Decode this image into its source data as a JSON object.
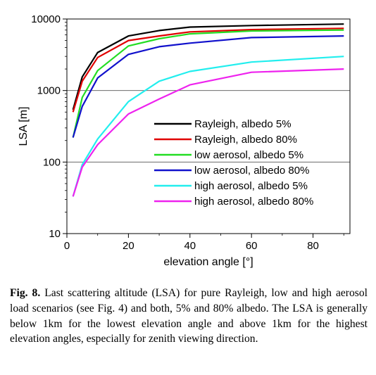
{
  "chart_data": {
    "type": "line",
    "xlabel": "elevation angle [°]",
    "ylabel": "LSA [m]",
    "xlim": [
      0,
      92
    ],
    "ylim": [
      10,
      10000
    ],
    "y_scale": "log",
    "x_ticks": [
      0,
      20,
      40,
      60,
      80
    ],
    "y_ticks": [
      10,
      100,
      1000,
      10000
    ],
    "grid": "horizontal at decades",
    "legend_position": "center-right",
    "x": [
      2,
      5,
      10,
      20,
      30,
      40,
      60,
      90
    ],
    "series": [
      {
        "name": "Rayleigh, albedo 5%",
        "color": "#000000",
        "values": [
          540,
          1550,
          3400,
          5800,
          6900,
          7700,
          8100,
          8500
        ]
      },
      {
        "name": "Rayleigh, albedo 80%",
        "color": "#e00000",
        "values": [
          500,
          1350,
          2900,
          5000,
          5800,
          6600,
          7100,
          7400
        ]
      },
      {
        "name": "low aerosol, albedo 5%",
        "color": "#22dd22",
        "values": [
          220,
          800,
          1900,
          4200,
          5300,
          6200,
          6800,
          7000
        ]
      },
      {
        "name": "low aerosol, albedo 80%",
        "color": "#1111cc",
        "values": [
          220,
          600,
          1500,
          3200,
          4100,
          4600,
          5500,
          5800
        ]
      },
      {
        "name": "high aerosol, albedo 5%",
        "color": "#22eeee",
        "values": [
          33,
          92,
          210,
          700,
          1350,
          1850,
          2500,
          3000
        ]
      },
      {
        "name": "high aerosol, albedo 80%",
        "color": "#ee22ee",
        "values": [
          33,
          85,
          175,
          470,
          760,
          1200,
          1800,
          2000
        ]
      }
    ]
  },
  "caption": {
    "label": "Fig. 8.",
    "text": "Last scattering altitude (LSA) for pure Rayleigh, low and high aerosol load scenarios (see Fig. 4) and both, 5% and 80% albedo. The LSA is generally below 1km for the lowest elevation angle and above 1km for the highest elevation angles, especially for zenith viewing direction."
  }
}
